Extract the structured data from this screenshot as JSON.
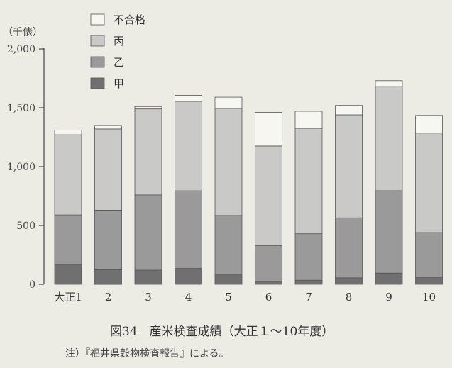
{
  "figure": {
    "caption": "図34　産米検査成績（大正１〜10年度）",
    "note": "注）『福井県穀物検査報告』による。"
  },
  "chart_data": {
    "type": "bar",
    "stacked": true,
    "unit_label": "（千俵）",
    "categories": [
      "大正1",
      "2",
      "3",
      "4",
      "5",
      "6",
      "7",
      "8",
      "9",
      "10"
    ],
    "ylim": [
      0,
      2000
    ],
    "yticks": [
      0,
      500,
      1000,
      1500,
      2000
    ],
    "ytick_labels": [
      "0",
      "500",
      "1,000",
      "1,500",
      "2,000"
    ],
    "grid": false,
    "legend_position": "top-left",
    "series": [
      {
        "name": "甲",
        "color": "#707070",
        "values": [
          170,
          125,
          120,
          135,
          85,
          25,
          35,
          55,
          95,
          60
        ]
      },
      {
        "name": "乙",
        "color": "#9a9a9a",
        "values": [
          420,
          505,
          640,
          660,
          500,
          305,
          395,
          510,
          700,
          380
        ]
      },
      {
        "name": "丙",
        "color": "#c9c9c7",
        "values": [
          680,
          690,
          730,
          760,
          910,
          845,
          895,
          875,
          885,
          845
        ]
      },
      {
        "name": "不合格",
        "color": "#f7f7f2",
        "values": [
          40,
          30,
          20,
          50,
          95,
          285,
          145,
          80,
          50,
          150
        ]
      }
    ]
  }
}
